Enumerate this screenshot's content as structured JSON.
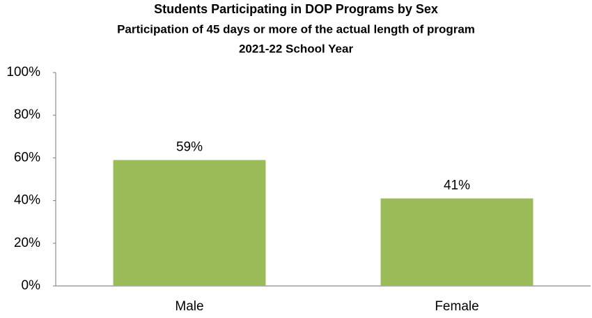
{
  "chart_data": {
    "type": "bar",
    "title": "Students Participating in DOP Programs by Sex",
    "subtitle": [
      "Participation of 45 days or more of the actual length of program",
      "2021-22 School Year"
    ],
    "categories": [
      "Male",
      "Female"
    ],
    "values": [
      59,
      41
    ],
    "value_labels": [
      "59%",
      "41%"
    ],
    "color": "#9bbb59",
    "ylim": [
      0,
      100
    ],
    "yticks": [
      {
        "value": 0,
        "label": "0%"
      },
      {
        "value": 20,
        "label": "20%"
      },
      {
        "value": 40,
        "label": "40%"
      },
      {
        "value": 60,
        "label": "60%"
      },
      {
        "value": 80,
        "label": "80%"
      },
      {
        "value": 100,
        "label": "100%"
      }
    ],
    "grid": false
  }
}
